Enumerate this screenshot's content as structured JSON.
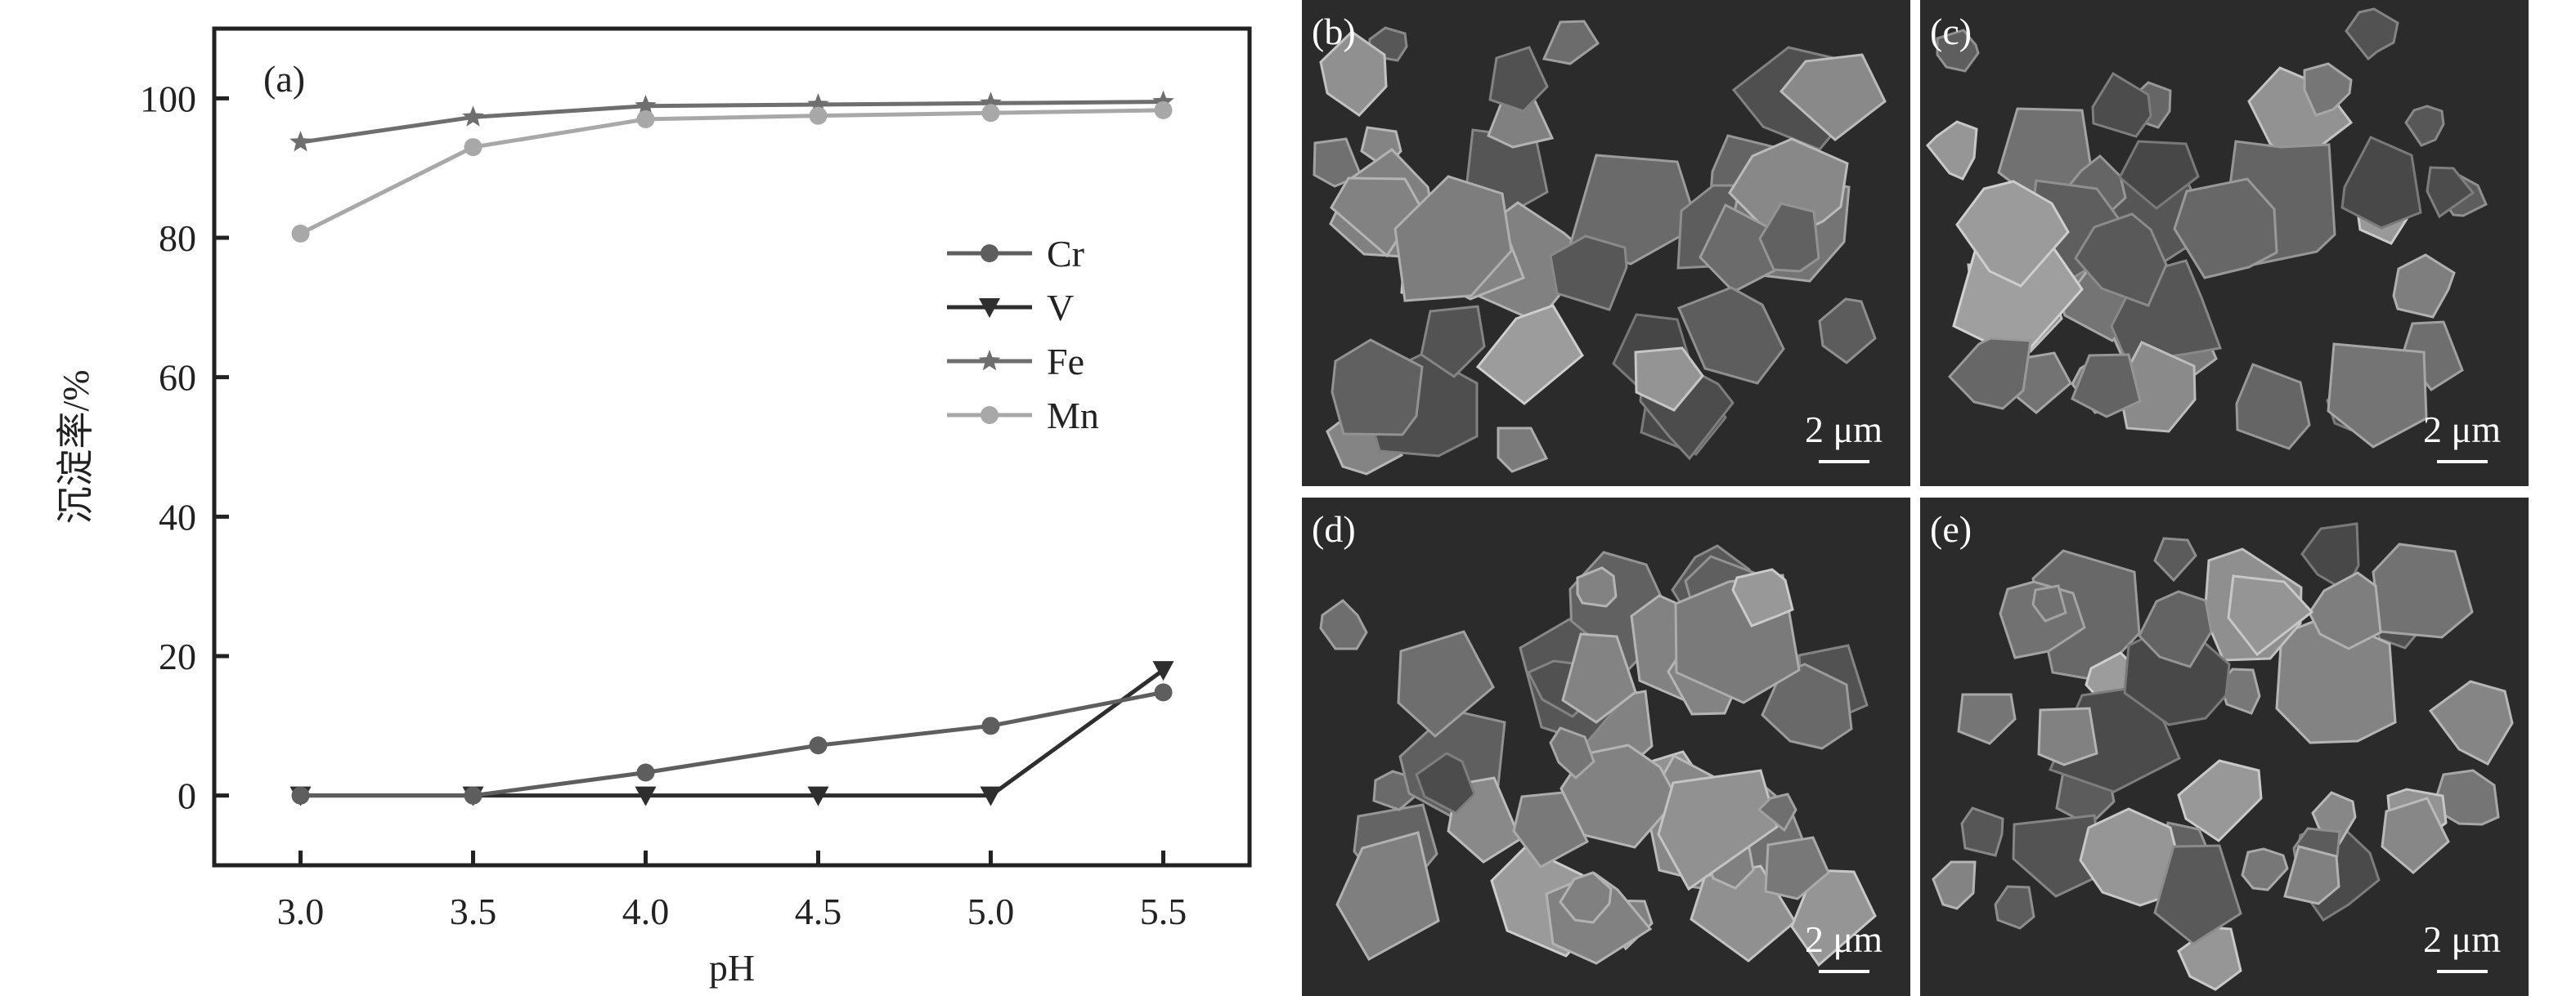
{
  "chart_data": {
    "type": "line",
    "panel_label": "(a)",
    "xlabel": "pH",
    "ylabel": "沉淀率/%",
    "x": [
      3.0,
      3.5,
      4.0,
      4.5,
      5.0,
      5.5
    ],
    "xticks": [
      "3.0",
      "3.5",
      "4.0",
      "4.5",
      "5.0",
      "5.5"
    ],
    "yticks": [
      "0",
      "20",
      "40",
      "60",
      "80",
      "100"
    ],
    "xlim": [
      2.75,
      5.75
    ],
    "ylim": [
      -10,
      110
    ],
    "grid": false,
    "legend_position": "right",
    "series": [
      {
        "name": "Cr",
        "marker": "circle",
        "color": "#5e5e5e",
        "values": [
          0,
          0,
          3.3,
          7.2,
          10.0,
          14.8
        ]
      },
      {
        "name": "V",
        "marker": "triangle-down",
        "color": "#2e2e2e",
        "values": [
          0,
          0,
          0,
          0,
          0,
          18.0
        ]
      },
      {
        "name": "Fe",
        "marker": "star",
        "color": "#6e6e6e",
        "values": [
          93.7,
          97.3,
          98.9,
          99.1,
          99.3,
          99.5
        ]
      },
      {
        "name": "Mn",
        "marker": "circle",
        "color": "#a8a8a8",
        "values": [
          80.6,
          93.0,
          97.0,
          97.5,
          97.9,
          98.3
        ]
      }
    ]
  },
  "sem_panels": [
    {
      "label": "(b)",
      "scale": "2 μm"
    },
    {
      "label": "(c)",
      "scale": "2 μm"
    },
    {
      "label": "(d)",
      "scale": "2 μm"
    },
    {
      "label": "(e)",
      "scale": "2 μm"
    }
  ]
}
